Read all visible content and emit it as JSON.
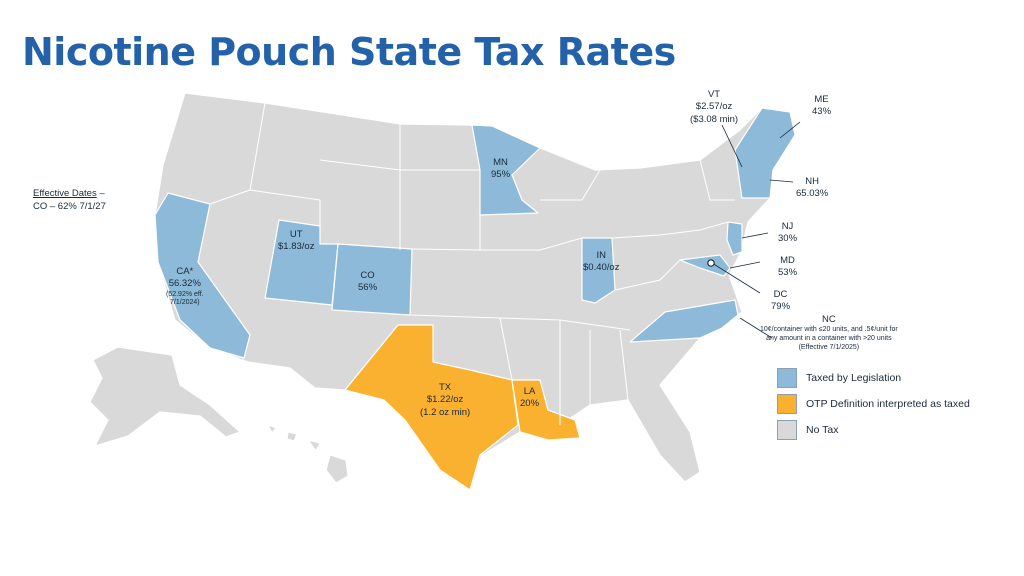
{
  "title": "Nicotine Pouch State Tax Rates",
  "effective_dates": {
    "heading": "Effective Dates",
    "line": "CO – 62% 7/1/27"
  },
  "colors": {
    "taxed": "#8cbad8",
    "otp": "#fbb130",
    "none": "#d9d9d9",
    "title": "#2362a8",
    "border": "#ffffff"
  },
  "labels": {
    "ca": [
      "CA*",
      "56.32%",
      "(52.92% eff.",
      "7/1/2024)"
    ],
    "ut": [
      "UT",
      "$1.83/oz"
    ],
    "co": [
      "CO",
      "56%"
    ],
    "mn": [
      "MN",
      "95%"
    ],
    "in": [
      "IN",
      "$0.40/oz"
    ],
    "tx": [
      "TX",
      "$1.22/oz",
      "(1.2 oz min)"
    ],
    "la": [
      "LA",
      "20%"
    ],
    "vt": [
      "VT",
      "$2.57/oz",
      "($3.08 min)"
    ],
    "me": [
      "ME",
      "43%"
    ],
    "nh": [
      "NH",
      "65.03%"
    ],
    "nj": [
      "NJ",
      "30%"
    ],
    "md": [
      "MD",
      "53%"
    ],
    "dc": [
      "DC",
      "79%"
    ],
    "nc": [
      "NC",
      "10¢/container with ≤20 units, and .5¢/unit for",
      "any amount in a container with >20 units",
      "(Effective 7/1/2025)"
    ]
  },
  "legend": [
    {
      "label": "Taxed by Legislation",
      "color": "#8cbad8"
    },
    {
      "label": "OTP Definition interpreted as taxed",
      "color": "#fbb130"
    },
    {
      "label": "No Tax",
      "color": "#d9d9d9"
    }
  ]
}
